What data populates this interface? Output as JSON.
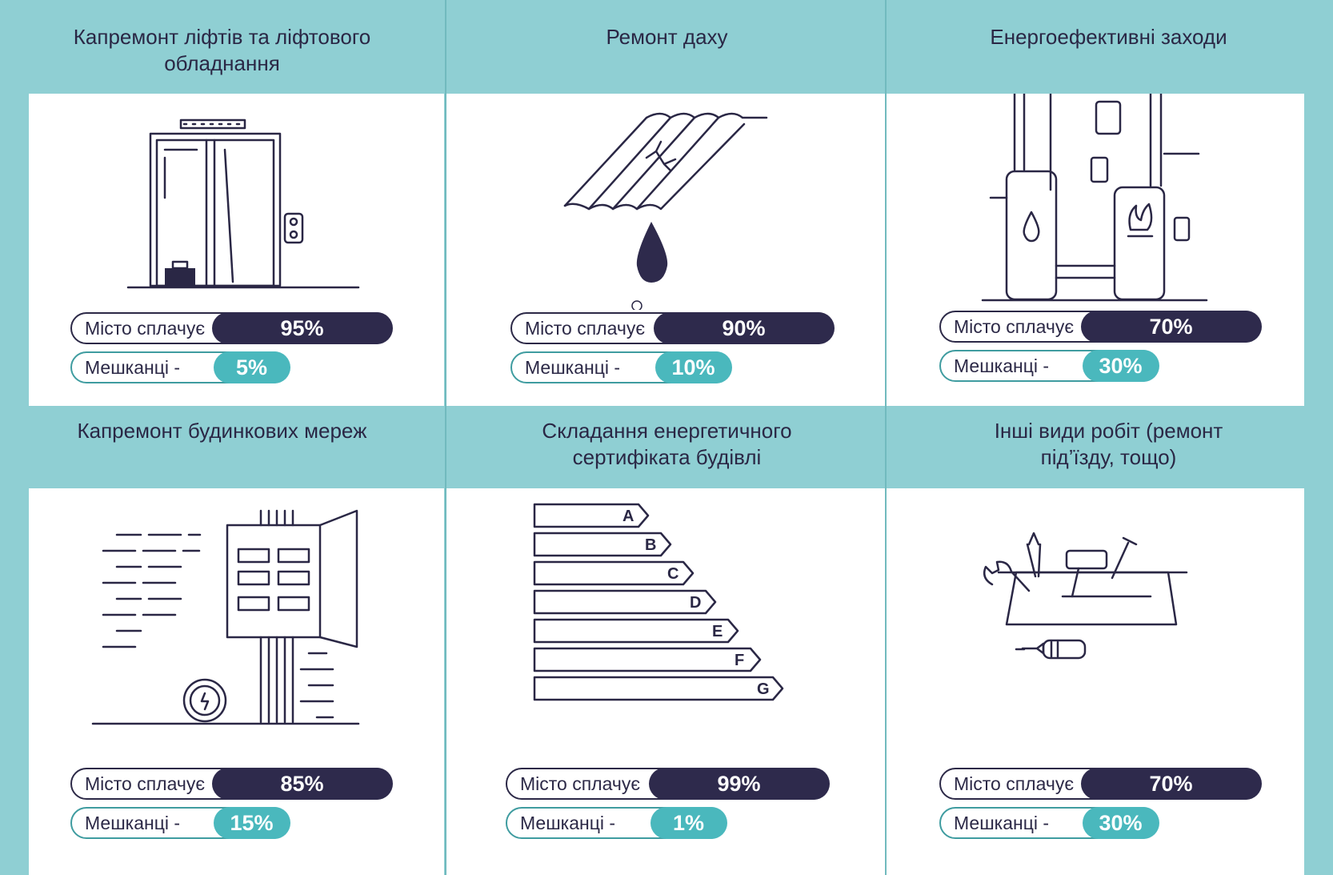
{
  "colors": {
    "background": "#8fcfd3",
    "card": "#ffffff",
    "city_fill": "#2e2a4c",
    "residents_fill": "#4ab8bd",
    "text": "#2a2745"
  },
  "cells": [
    {
      "title": "Капремонт ліфтів та ліфтового обладнання",
      "icon": "elevator-icon",
      "city_label": "Місто сплачує",
      "city_value": "95%",
      "residents_label": "Мешканці -",
      "residents_value": "5%"
    },
    {
      "title": "Ремонт даху",
      "icon": "roof-leak-icon",
      "city_label": "Місто сплачує",
      "city_value": "90%",
      "residents_label": "Мешканці -",
      "residents_value": "10%"
    },
    {
      "title": "Енергоефективні заходи",
      "icon": "boiler-icon",
      "city_label": "Місто сплачує",
      "city_value": "70%",
      "residents_label": "Мешканці -",
      "residents_value": "30%"
    },
    {
      "title": "Капремонт будинкових мереж",
      "icon": "electrical-panel-icon",
      "city_label": "Місто сплачує",
      "city_value": "85%",
      "residents_label": "Мешканці -",
      "residents_value": "15%"
    },
    {
      "title": "Складання енергетичного сертифіката будівлі",
      "icon": "energy-rating-icon",
      "city_label": "Місто сплачує",
      "city_value": "99%",
      "residents_label": "Мешканці -",
      "residents_value": "1%",
      "rating_classes": [
        "A",
        "B",
        "C",
        "D",
        "E",
        "F",
        "G"
      ]
    },
    {
      "title": "Інші види робіт (ремонт під’їзду, тощо)",
      "icon": "toolbox-icon",
      "city_label": "Місто сплачує",
      "city_value": "70%",
      "residents_label": "Мешканці -",
      "residents_value": "30%"
    }
  ]
}
